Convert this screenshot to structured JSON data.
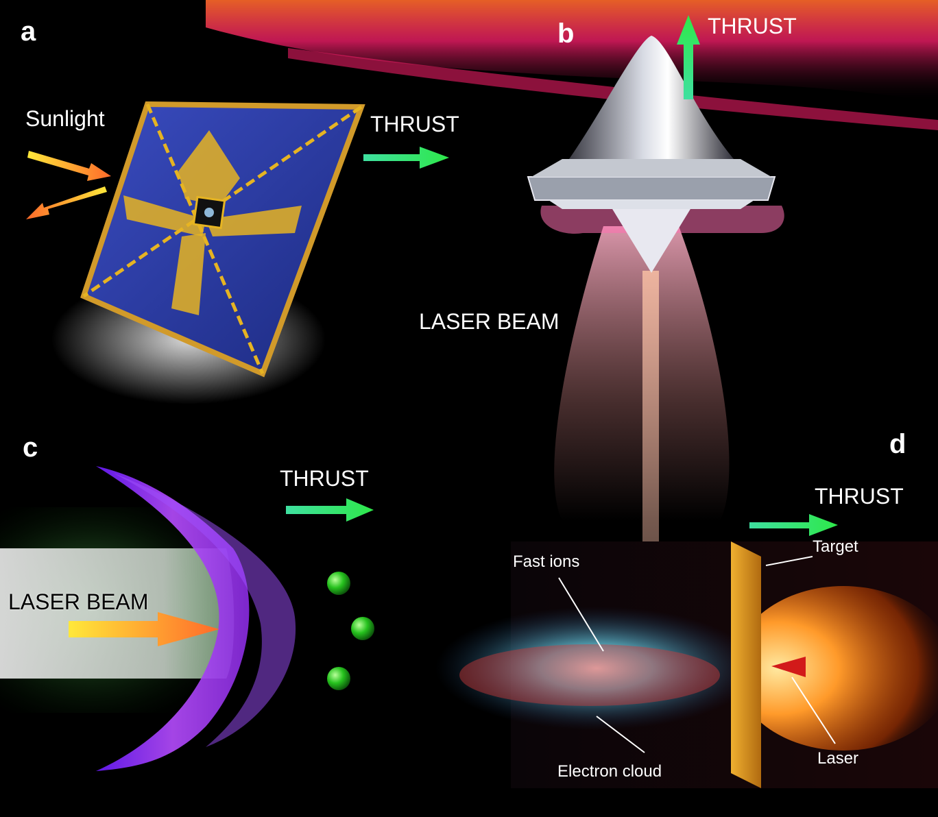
{
  "panels": {
    "a": {
      "letter": "a",
      "labels": {
        "sunlight": "Sunlight",
        "thrust": "THRUST"
      }
    },
    "b": {
      "letter": "b",
      "labels": {
        "thrust": "THRUST",
        "laser_beam": "LASER BEAM"
      }
    },
    "c": {
      "letter": "c",
      "labels": {
        "thrust": "THRUST",
        "laser_beam": "LASER BEAM"
      }
    },
    "d": {
      "letter": "d",
      "labels": {
        "thrust": "THRUST",
        "fast_ions": "Fast ions",
        "target": "Target",
        "electron_cloud": "Electron cloud",
        "laser": "Laser"
      }
    }
  },
  "colors": {
    "background": "#000000",
    "thrust_arrow_start": "#3fe0a0",
    "thrust_arrow_end": "#2ee84a",
    "incoming_arrow_start": "#ffe83a",
    "incoming_arrow_end": "#ff6a2a",
    "sail_blue": "#2a3aa0",
    "sail_gold": "#e6b422",
    "foil_purple": "#9a3cff",
    "target_orange": "#d9901a",
    "ion_cyan": "#6ad2e6",
    "ion_red": "#d23a3a"
  }
}
